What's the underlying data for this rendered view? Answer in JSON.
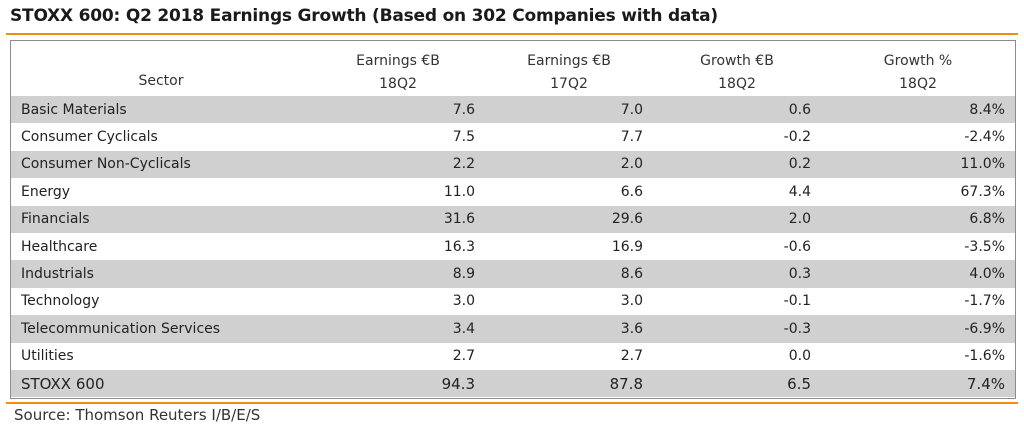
{
  "title": "STOXX 600: Q2 2018 Earnings Growth (Based on 302 Companies with data)",
  "source": "Source: Thomson Reuters I/B/E/S",
  "colors": {
    "accent_rule": "#ee8e1a",
    "shaded_row": "#d0d0d0",
    "border": "#8c8c8c"
  },
  "chart_data": {
    "type": "table",
    "title": "STOXX 600: Q2 2018 Earnings Growth (Based on 302 Companies with data)",
    "columns": [
      {
        "label": "Sector",
        "sub": ""
      },
      {
        "label": "Earnings €B",
        "sub": "18Q2"
      },
      {
        "label": "Earnings €B",
        "sub": "17Q2"
      },
      {
        "label": "Growth €B",
        "sub": "18Q2"
      },
      {
        "label": "Growth %",
        "sub": "18Q2"
      }
    ],
    "rows": [
      [
        "Basic Materials",
        "7.6",
        "7.0",
        "0.6",
        "8.4%"
      ],
      [
        "Consumer Cyclicals",
        "7.5",
        "7.7",
        "-0.2",
        "-2.4%"
      ],
      [
        "Consumer Non-Cyclicals",
        "2.2",
        "2.0",
        "0.2",
        "11.0%"
      ],
      [
        "Energy",
        "11.0",
        "6.6",
        "4.4",
        "67.3%"
      ],
      [
        "Financials",
        "31.6",
        "29.6",
        "2.0",
        "6.8%"
      ],
      [
        "Healthcare",
        "16.3",
        "16.9",
        "-0.6",
        "-3.5%"
      ],
      [
        "Industrials",
        "8.9",
        "8.6",
        "0.3",
        "4.0%"
      ],
      [
        "Technology",
        "3.0",
        "3.0",
        "-0.1",
        "-1.7%"
      ],
      [
        "Telecommunication Services",
        "3.4",
        "3.6",
        "-0.3",
        "-6.9%"
      ],
      [
        "Utilities",
        "2.7",
        "2.7",
        "0.0",
        "-1.6%"
      ]
    ],
    "total": [
      "STOXX 600",
      "94.3",
      "87.8",
      "6.5",
      "7.4%"
    ]
  }
}
